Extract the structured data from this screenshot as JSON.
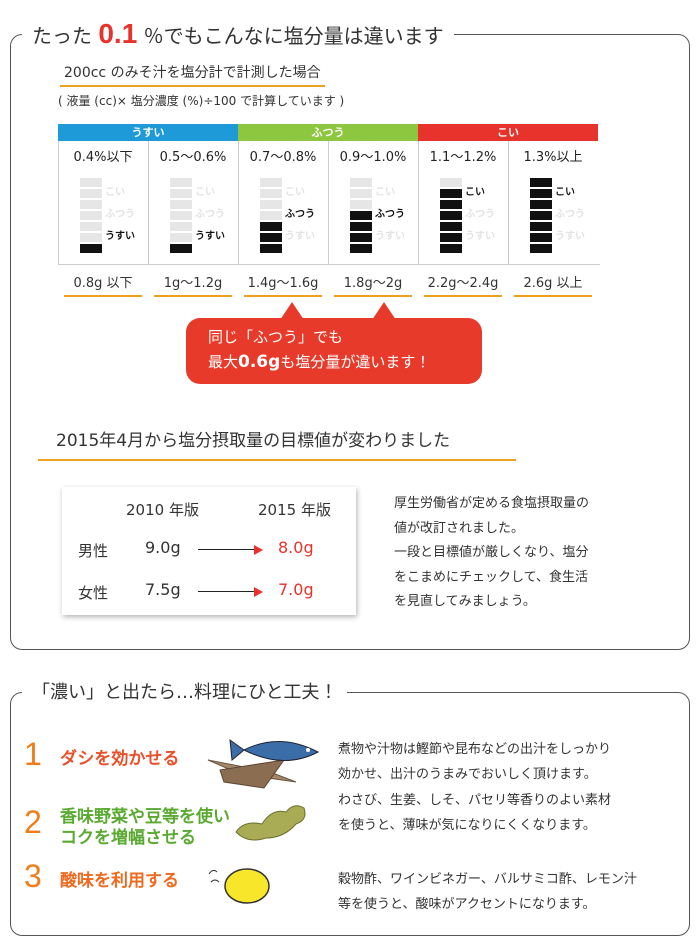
{
  "intro": {
    "title_before": "たった",
    "title_number": "0.1",
    "title_after": "％でもこんなに塩分量は違います",
    "subtitle": "200cc のみそ汁を塩分計で計測した場合",
    "note": "( 液量 (cc)× 塩分濃度 (%)÷100 で計算しています )"
  },
  "table": {
    "groups": [
      {
        "label": "うすい",
        "color": "#1f9ad8"
      },
      {
        "label": "ふつう",
        "color": "#8dc63f"
      },
      {
        "label": "こい",
        "color": "#e8322c"
      }
    ],
    "meter_labels": [
      "こい",
      "ふつう",
      "うすい"
    ],
    "columns": [
      {
        "range": "0.4%以下",
        "level": 2,
        "bars": 1,
        "amount": "0.8g 以下"
      },
      {
        "range": "0.5〜0.6%",
        "level": 2,
        "bars": 1,
        "amount": "1g〜1.2g"
      },
      {
        "range": "0.7〜0.8%",
        "level": 1,
        "bars": 3,
        "amount": "1.4g〜1.6g"
      },
      {
        "range": "0.9〜1.0%",
        "level": 1,
        "bars": 4,
        "amount": "1.8g〜2g"
      },
      {
        "range": "1.1〜1.2%",
        "level": 0,
        "bars": 6,
        "amount": "2.2g〜2.4g"
      },
      {
        "range": "1.3%以上",
        "level": 0,
        "bars": 7,
        "amount": "2.6g 以上"
      }
    ]
  },
  "callout": {
    "line1": "同じ「ふつう」でも",
    "line2_before": "最大",
    "line2_number": "0.6g",
    "line2_after": "も塩分量が違います！"
  },
  "targets": {
    "heading": "2015年4月から塩分摂取量の目標値が変わりました",
    "header": [
      "2010 年版",
      "2015 年版"
    ],
    "rows": [
      {
        "label": "男性",
        "old": "9.0g",
        "new": "8.0g"
      },
      {
        "label": "女性",
        "old": "7.5g",
        "new": "7.0g"
      }
    ],
    "text": [
      "厚生労働省が定める食塩摂取量の",
      "値が改訂されました。",
      "一段と目標値が厳しくなり、塩分",
      "をこまめにチェックして、食生活",
      "を見直してみましょう。"
    ]
  },
  "tips": {
    "title": "「濃い」と出たら…料理にひと工夫！",
    "items": [
      {
        "number": "1",
        "label": [
          "ダシを効かせる"
        ],
        "desc": [
          "煮物や汁物は鰹節や昆布などの出汁をしっかり",
          "効かせ、出汁のうまみでおいしく頂けます。"
        ]
      },
      {
        "number": "2",
        "label": [
          "香味野菜や豆等を使い",
          "コクを増幅させる"
        ],
        "desc": [
          "わさび、生姜、しそ、パセリ等香りのよい素材",
          "を使うと、薄味が気になりにくくなります。"
        ]
      },
      {
        "number": "3",
        "label": [
          "酸味を利用する"
        ],
        "desc": [
          "穀物酢、ワインビネガー、バルサミコ酢、レモン汁",
          "等を使うと、酸味がアクセントになります。"
        ]
      }
    ]
  }
}
